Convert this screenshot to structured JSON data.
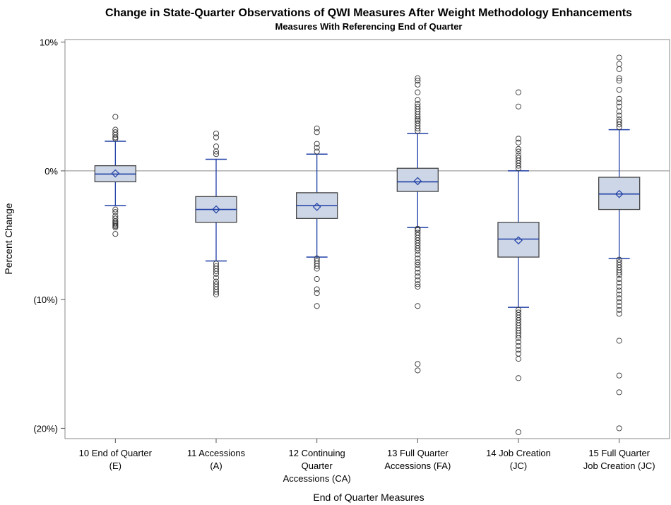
{
  "chart_data": {
    "type": "box",
    "title": "Change in State-Quarter Observations of QWI Measures After Weight Methodology Enhancements",
    "subtitle": "Measures With Referencing End of Quarter",
    "xlabel": "End of Quarter Measures",
    "ylabel": "Percent Change",
    "ylim": [
      -20.8,
      10.2
    ],
    "y_ticks": [
      {
        "value": 10,
        "label": "10%"
      },
      {
        "value": 0,
        "label": "0%"
      },
      {
        "value": -10,
        "label": "(10%)"
      },
      {
        "value": -20,
        "label": "(20%)"
      }
    ],
    "reference_line": 0,
    "grid": false,
    "colors": {
      "box_fill": "#cdd6e6",
      "box_edge": "#444444",
      "whisker": "#1f3fa6",
      "median": "#1f3fa6",
      "mean_marker": "#1f3fa6",
      "outlier": "#333333",
      "reference_line": "#a0a0a0",
      "frame": "#888888"
    },
    "categories": [
      {
        "label_lines": [
          "10 End of Quarter",
          "(E)"
        ]
      },
      {
        "label_lines": [
          "11 Accessions",
          "(A)"
        ]
      },
      {
        "label_lines": [
          "12 Continuing",
          "Quarter",
          "Accessions (CA)"
        ]
      },
      {
        "label_lines": [
          "13 Full Quarter",
          "Accessions (FA)"
        ]
      },
      {
        "label_lines": [
          "14 Job Creation",
          "(JC)"
        ]
      },
      {
        "label_lines": [
          "15 Full Quarter",
          "Job Creation (JC)"
        ]
      }
    ],
    "boxes": [
      {
        "q1": -0.85,
        "median": -0.25,
        "q3": 0.4,
        "mean": -0.2,
        "whisker_low": -2.7,
        "whisker_high": 2.3,
        "outliers": [
          4.2,
          3.2,
          3.0,
          2.8,
          2.6,
          2.5,
          -3.0,
          -3.2,
          -3.5,
          -3.7,
          -3.9,
          -4.0,
          -4.1,
          -4.2,
          -4.3,
          -4.4,
          -4.9
        ]
      },
      {
        "q1": -4.0,
        "median": -3.0,
        "q3": -2.0,
        "mean": -3.0,
        "whisker_low": -7.0,
        "whisker_high": 0.9,
        "outliers": [
          2.9,
          2.6,
          1.9,
          1.5,
          1.3,
          -7.2,
          -7.4,
          -7.6,
          -7.8,
          -8.0,
          -8.3,
          -8.6,
          -8.8,
          -9.0,
          -9.2,
          -9.4,
          -9.6
        ]
      },
      {
        "q1": -3.7,
        "median": -2.7,
        "q3": -1.7,
        "mean": -2.8,
        "whisker_low": -6.7,
        "whisker_high": 1.3,
        "outliers": [
          3.3,
          3.0,
          2.1,
          1.8,
          1.5,
          -6.8,
          -7.0,
          -7.2,
          -7.4,
          -7.6,
          -8.4,
          -9.2,
          -9.5,
          -10.5
        ]
      },
      {
        "q1": -1.6,
        "median": -0.85,
        "q3": 0.2,
        "mean": -0.8,
        "whisker_low": -4.4,
        "whisker_high": 2.9,
        "outliers": [
          7.2,
          7.0,
          6.7,
          6.1,
          5.5,
          5.2,
          5.0,
          4.8,
          4.6,
          4.4,
          4.2,
          4.0,
          3.9,
          3.7,
          3.5,
          3.3,
          3.1,
          -4.5,
          -4.6,
          -4.8,
          -5.0,
          -5.2,
          -5.4,
          -5.6,
          -5.8,
          -6.0,
          -6.2,
          -6.5,
          -6.8,
          -7.1,
          -7.3,
          -7.6,
          -7.9,
          -8.2,
          -8.5,
          -8.8,
          -9.0,
          -10.5,
          -15.0,
          -15.5
        ]
      },
      {
        "q1": -6.7,
        "median": -5.3,
        "q3": -4.0,
        "mean": -5.4,
        "whisker_low": -10.6,
        "whisker_high": 0.0,
        "outliers": [
          6.1,
          5.0,
          2.5,
          2.2,
          1.7,
          1.5,
          1.2,
          1.0,
          0.8,
          0.6,
          0.4,
          0.2,
          -10.8,
          -11.0,
          -11.2,
          -11.4,
          -11.6,
          -11.8,
          -12.0,
          -12.2,
          -12.4,
          -12.6,
          -12.8,
          -13.0,
          -13.3,
          -13.6,
          -13.9,
          -14.2,
          -14.6,
          -16.1,
          -20.3
        ]
      },
      {
        "q1": -3.0,
        "median": -1.8,
        "q3": -0.5,
        "mean": -1.8,
        "whisker_low": -6.8,
        "whisker_high": 3.2,
        "outliers": [
          8.8,
          8.3,
          7.9,
          7.2,
          7.0,
          6.3,
          5.6,
          5.3,
          5.0,
          4.6,
          4.3,
          4.0,
          3.8,
          3.6,
          3.4,
          -6.9,
          -7.1,
          -7.3,
          -7.5,
          -7.7,
          -7.9,
          -8.1,
          -8.4,
          -8.7,
          -9.0,
          -9.3,
          -9.6,
          -9.9,
          -10.2,
          -10.5,
          -10.8,
          -11.1,
          -13.2,
          -15.9,
          -17.2,
          -20.0
        ]
      }
    ]
  }
}
